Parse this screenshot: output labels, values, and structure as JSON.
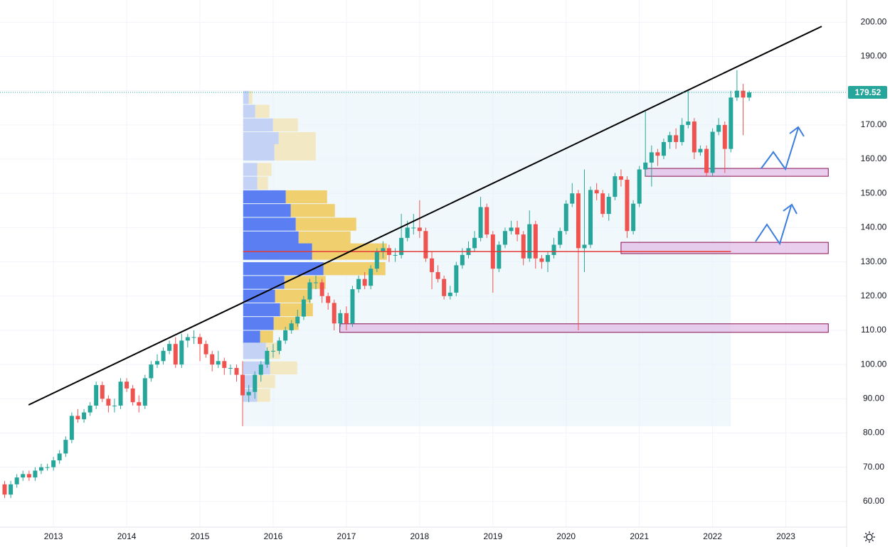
{
  "chart_data": {
    "type": "candlestick",
    "x": [
      2012.333,
      2012.417,
      2012.5,
      2012.583,
      2012.667,
      2012.75,
      2012.833,
      2012.917,
      2013.0,
      2013.083,
      2013.167,
      2013.25,
      2013.333,
      2013.417,
      2013.5,
      2013.583,
      2013.667,
      2013.75,
      2013.833,
      2013.917,
      2014.0,
      2014.083,
      2014.167,
      2014.25,
      2014.333,
      2014.417,
      2014.5,
      2014.583,
      2014.667,
      2014.75,
      2014.833,
      2014.917,
      2015.0,
      2015.083,
      2015.167,
      2015.25,
      2015.333,
      2015.417,
      2015.5,
      2015.583,
      2015.667,
      2015.75,
      2015.833,
      2015.917,
      2016.0,
      2016.083,
      2016.167,
      2016.25,
      2016.333,
      2016.417,
      2016.5,
      2016.583,
      2016.667,
      2016.75,
      2016.833,
      2016.917,
      2017.0,
      2017.083,
      2017.167,
      2017.25,
      2017.333,
      2017.417,
      2017.5,
      2017.583,
      2017.667,
      2017.75,
      2017.833,
      2017.917,
      2018.0,
      2018.083,
      2018.167,
      2018.25,
      2018.333,
      2018.417,
      2018.5,
      2018.583,
      2018.667,
      2018.75,
      2018.833,
      2018.917,
      2019.0,
      2019.083,
      2019.167,
      2019.25,
      2019.333,
      2019.417,
      2019.5,
      2019.583,
      2019.667,
      2019.75,
      2019.833,
      2019.917,
      2020.0,
      2020.083,
      2020.167,
      2020.25,
      2020.333,
      2020.417,
      2020.5,
      2020.583,
      2020.667,
      2020.75,
      2020.833,
      2020.917,
      2021.0,
      2021.083,
      2021.167,
      2021.25,
      2021.333,
      2021.417,
      2021.5,
      2021.583,
      2021.667,
      2021.75,
      2021.833,
      2021.917,
      2022.0,
      2022.083,
      2022.167,
      2022.25,
      2022.333,
      2022.417,
      2022.5
    ],
    "open": [
      65,
      62,
      65,
      67,
      68,
      67,
      69,
      70,
      70,
      72,
      74,
      78,
      85,
      84,
      86,
      88,
      94,
      90,
      88,
      88,
      95,
      93,
      89,
      88,
      96,
      100,
      101,
      104,
      106,
      100,
      107,
      108,
      108,
      106,
      103,
      100,
      101,
      99,
      99,
      97,
      91,
      92,
      97,
      100,
      104,
      104,
      107,
      110,
      112,
      114,
      119,
      124,
      124,
      120,
      118,
      112,
      115,
      112,
      122,
      125,
      123,
      128,
      133,
      134,
      132,
      132,
      137,
      140,
      140,
      139,
      131,
      127,
      125,
      120,
      121,
      129,
      132,
      134,
      137,
      146,
      138,
      128,
      135,
      139,
      140,
      138,
      131,
      141,
      131,
      130,
      132,
      135,
      139,
      147,
      150,
      134,
      135,
      151,
      150,
      144,
      149,
      155,
      154,
      139,
      147,
      157,
      159,
      162,
      161,
      165,
      167,
      165,
      170,
      171,
      162,
      163,
      156,
      168,
      170,
      163,
      178,
      180,
      178
    ],
    "high": [
      66,
      66,
      68,
      69,
      69,
      70,
      71,
      71,
      73,
      75,
      79,
      86,
      87,
      87,
      89,
      95,
      95,
      91,
      90,
      96,
      96,
      94,
      91,
      97,
      101,
      103,
      105,
      107,
      108,
      109,
      109,
      110,
      109,
      107,
      104,
      104,
      102,
      100,
      100,
      101,
      94,
      98,
      101,
      105,
      106,
      108,
      111,
      113,
      116,
      120,
      125,
      126,
      125,
      121,
      119,
      116,
      117,
      123,
      126,
      127,
      129,
      134,
      136,
      135,
      134,
      144,
      142,
      144,
      148,
      140,
      133,
      129,
      126,
      123,
      130,
      134,
      136,
      139,
      149,
      147,
      139,
      136,
      140,
      142,
      142,
      139,
      145,
      142,
      132,
      133,
      137,
      140,
      148,
      153,
      151,
      157,
      152,
      153,
      151,
      150,
      156,
      157,
      155,
      148,
      158,
      174,
      164,
      163,
      166,
      168,
      169,
      172,
      180,
      172,
      164,
      164,
      169,
      172,
      171,
      180,
      186,
      182,
      180
    ],
    "low": [
      61,
      61,
      64,
      66,
      66,
      66,
      68,
      69,
      69,
      71,
      73,
      77,
      83,
      83,
      85,
      87,
      89,
      86,
      86,
      87,
      92,
      88,
      86,
      87,
      95,
      99,
      100,
      103,
      99,
      99,
      105,
      106,
      101,
      102,
      98,
      99,
      97,
      97,
      95,
      82,
      89,
      90,
      95,
      99,
      102,
      103,
      106,
      109,
      111,
      113,
      118,
      122,
      118,
      116,
      110,
      111,
      110,
      111,
      121,
      122,
      122,
      127,
      131,
      130,
      130,
      131,
      136,
      138,
      137,
      130,
      122,
      124,
      119,
      119,
      120,
      128,
      131,
      133,
      136,
      137,
      121,
      127,
      134,
      138,
      136,
      129,
      130,
      128,
      128,
      127,
      131,
      134,
      138,
      146,
      110,
      127,
      134,
      148,
      143,
      142,
      148,
      152,
      137,
      138,
      146,
      155,
      152,
      158,
      160,
      163,
      163,
      164,
      169,
      160,
      161,
      155,
      155,
      167,
      156,
      162,
      177,
      167,
      177
    ],
    "close": [
      62,
      65,
      67,
      68,
      67,
      69,
      70,
      70,
      72,
      74,
      78,
      85,
      84,
      86,
      88,
      94,
      90,
      88,
      88,
      95,
      93,
      89,
      88,
      96,
      100,
      101,
      104,
      106,
      100,
      107,
      108,
      108,
      106,
      103,
      100,
      101,
      99,
      99,
      97,
      91,
      92,
      97,
      100,
      104,
      104,
      107,
      110,
      112,
      114,
      119,
      124,
      124,
      120,
      118,
      112,
      115,
      112,
      122,
      125,
      123,
      128,
      133,
      134,
      132,
      132,
      137,
      140,
      140,
      139,
      131,
      127,
      125,
      120,
      121,
      129,
      132,
      134,
      137,
      146,
      138,
      128,
      135,
      139,
      140,
      138,
      131,
      141,
      131,
      130,
      132,
      135,
      139,
      147,
      150,
      134,
      135,
      151,
      150,
      144,
      149,
      155,
      154,
      139,
      147,
      157,
      159,
      162,
      161,
      165,
      167,
      165,
      170,
      171,
      162,
      163,
      156,
      168,
      170,
      163,
      178,
      180,
      178,
      179.52
    ],
    "up_color": "#26a69a",
    "down_color": "#ef5350",
    "xlim": [
      2012.27,
      2023.83
    ],
    "ylim": [
      52.5,
      206.5
    ],
    "xticks": [
      2013,
      2014,
      2015,
      2016,
      2017,
      2018,
      2019,
      2020,
      2021,
      2022,
      2023
    ],
    "yticks": [
      {
        "value": 60,
        "label": "60.00"
      },
      {
        "value": 70,
        "label": "70.00"
      },
      {
        "value": 80,
        "label": "80.00"
      },
      {
        "value": 90,
        "label": "90.00"
      },
      {
        "value": 100,
        "label": "100.00"
      },
      {
        "value": 110,
        "label": "110.00"
      },
      {
        "value": 120,
        "label": "120.00"
      },
      {
        "value": 130,
        "label": "130.00"
      },
      {
        "value": 140,
        "label": "140.00"
      },
      {
        "value": 150,
        "label": "150.00"
      },
      {
        "value": 160,
        "label": "160.00"
      },
      {
        "value": 170,
        "label": "170.00"
      },
      {
        "value": 180,
        "label": "180.00"
      },
      {
        "value": 190,
        "label": "190.00"
      },
      {
        "value": 200,
        "label": "200.00"
      }
    ],
    "grid": true,
    "trendline": {
      "x": [
        2012.66,
        2023.49
      ],
      "y": [
        88.2,
        198.8
      ],
      "color": "#000000"
    },
    "zones": [
      {
        "x": [
          2021.08,
          2023.58
        ],
        "y": [
          155,
          157.3
        ]
      },
      {
        "x": [
          2020.75,
          2023.58
        ],
        "y": [
          132.4,
          135.7
        ]
      },
      {
        "x": [
          2016.91,
          2023.58
        ],
        "y": [
          109.4,
          111.9
        ]
      }
    ],
    "profile": {
      "x": [
        2015.59,
        2022.25
      ],
      "y": [
        82,
        180
      ],
      "poc": 133,
      "value_area": [
        106,
        151
      ],
      "levels": [
        178,
        174,
        170,
        166,
        162,
        157,
        153,
        149,
        145,
        141,
        137,
        133,
        128,
        124,
        120,
        116,
        112,
        108,
        104,
        99,
        95,
        91
      ],
      "up": [
        8,
        17,
        42,
        50,
        44,
        20,
        20,
        60,
        67,
        74,
        78,
        97,
        113,
        58,
        45,
        52,
        43,
        24,
        32,
        38,
        20,
        20
      ],
      "down": [
        5,
        20,
        35,
        52,
        58,
        20,
        15,
        58,
        62,
        85,
        73,
        105,
        87,
        58,
        50,
        46,
        35,
        18,
        20,
        38,
        25,
        18
      ]
    }
  }
}
